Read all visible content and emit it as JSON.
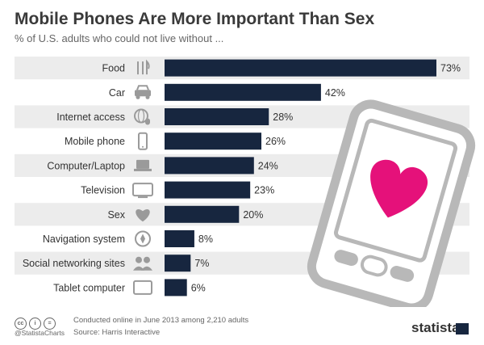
{
  "header": {
    "title": "Mobile Phones Are More Important Than Sex",
    "subtitle": "% of U.S. adults who could not live without ..."
  },
  "chart_data": {
    "type": "bar",
    "orientation": "horizontal",
    "categories": [
      "Food",
      "Car",
      "Internet access",
      "Mobile phone",
      "Computer/Laptop",
      "Television",
      "Sex",
      "Navigation system",
      "Social networking sites",
      "Tablet computer"
    ],
    "values": [
      73,
      42,
      28,
      26,
      24,
      23,
      20,
      8,
      7,
      6
    ],
    "value_labels": [
      "73%",
      "42%",
      "28%",
      "26%",
      "24%",
      "23%",
      "20%",
      "8%",
      "7%",
      "6%"
    ],
    "icons": [
      "fork-knife-icon",
      "car-icon",
      "globe-mouse-icon",
      "phone-icon",
      "laptop-icon",
      "tv-icon",
      "heart-icon",
      "compass-icon",
      "people-icon",
      "tablet-icon"
    ],
    "xlim": [
      0,
      73
    ],
    "grid": false,
    "bar_color": "#17263f",
    "stripe_color": "#ececec"
  },
  "footer": {
    "license_icons": [
      "cc",
      "i",
      "="
    ],
    "handle": "@StatistaCharts",
    "note": "Conducted online in June 2013 among 2,210 adults",
    "source": "Source: Harris Interactive",
    "brand": "statista"
  }
}
